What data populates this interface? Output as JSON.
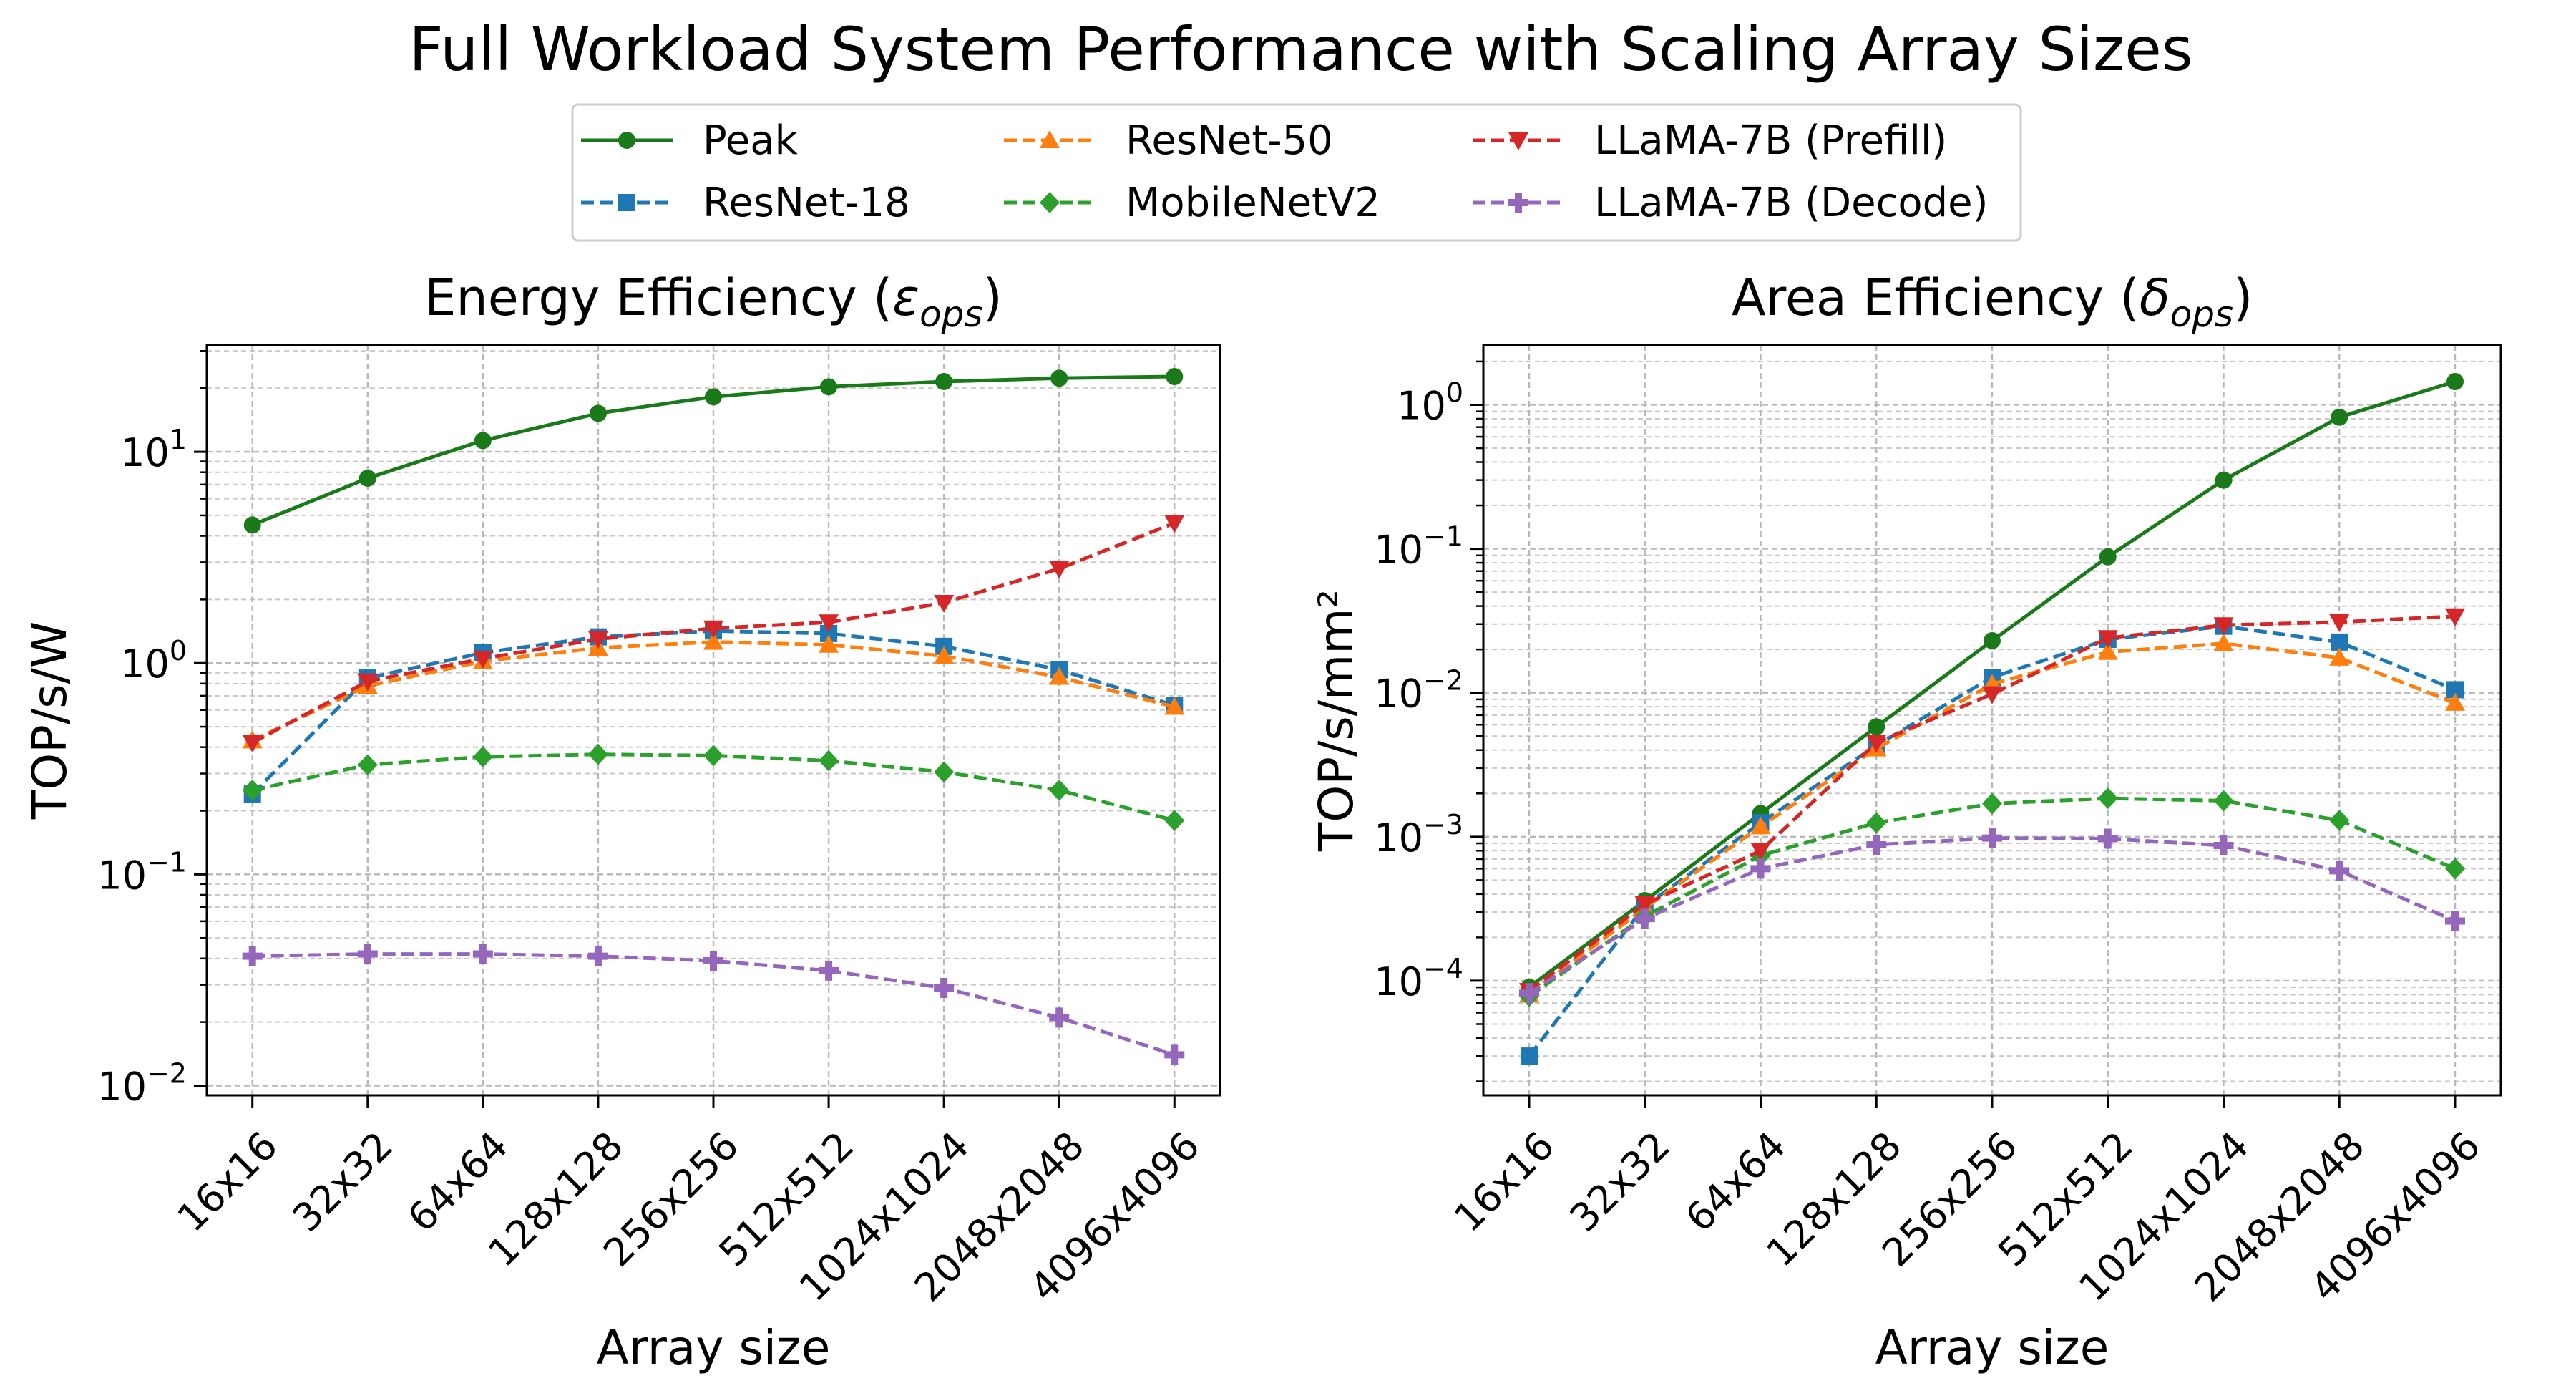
{
  "figure": {
    "title": "Full Workload System Performance with Scaling Array Sizes"
  },
  "legend": {
    "placement": "top-center, 3 columns",
    "entries": [
      {
        "series": "Peak",
        "label": "Peak",
        "color": "#1a7a1a",
        "marker": "circle",
        "dash": "solid"
      },
      {
        "series": "ResNet-18",
        "label": "ResNet-18",
        "color": "#1f77b4",
        "marker": "square",
        "dash": "dashed"
      },
      {
        "series": "ResNet-50",
        "label": "ResNet-50",
        "color": "#ff7f0e",
        "marker": "triangle-up",
        "dash": "dashed"
      },
      {
        "series": "MobileNetV2",
        "label": "MobileNetV2",
        "color": "#2ca02c",
        "marker": "diamond",
        "dash": "dashed"
      },
      {
        "series": "LLaMA-7B (Prefill)",
        "label": "LLaMA-7B (Prefill)",
        "color": "#d62728",
        "marker": "triangle-down",
        "dash": "dashed"
      },
      {
        "series": "LLaMA-7B (Decode)",
        "label": "LLaMA-7B (Decode)",
        "color": "#9467bd",
        "marker": "plus",
        "dash": "dashed"
      }
    ]
  },
  "chart_data": [
    {
      "type": "line",
      "title_text": "Energy Efficiency (",
      "title_symbol": "ε",
      "title_sub": "ops",
      "title_close": ")",
      "xlabel": "Array size",
      "ylabel": "TOP/s/W",
      "yscale": "log",
      "ylim": [
        0.009,
        32
      ],
      "yticks": [
        {
          "value": 0.01,
          "base": "10",
          "exp": "−2"
        },
        {
          "value": 0.1,
          "base": "10",
          "exp": "−1"
        },
        {
          "value": 1,
          "base": "10",
          "exp": "0"
        },
        {
          "value": 10,
          "base": "10",
          "exp": "1"
        }
      ],
      "grid": true,
      "categories": [
        "16x16",
        "32x32",
        "64x64",
        "128x128",
        "256x256",
        "512x512",
        "1024x1024",
        "2048x2048",
        "4096x4096"
      ],
      "series": [
        {
          "name": "Peak",
          "values": [
            4.5,
            7.5,
            11.3,
            15.2,
            18.2,
            20.3,
            21.5,
            22.3,
            22.7
          ]
        },
        {
          "name": "ResNet-18",
          "values": [
            0.24,
            0.85,
            1.12,
            1.33,
            1.42,
            1.38,
            1.2,
            0.93,
            0.63
          ]
        },
        {
          "name": "ResNet-50",
          "values": [
            0.43,
            0.78,
            1.02,
            1.18,
            1.26,
            1.22,
            1.08,
            0.86,
            0.62
          ]
        },
        {
          "name": "MobileNetV2",
          "values": [
            0.25,
            0.33,
            0.36,
            0.37,
            0.365,
            0.345,
            0.305,
            0.25,
            0.18
          ]
        },
        {
          "name": "LLaMA-7B (Prefill)",
          "values": [
            0.42,
            0.82,
            1.05,
            1.3,
            1.46,
            1.56,
            1.93,
            2.8,
            4.6
          ]
        },
        {
          "name": "LLaMA-7B (Decode)",
          "values": [
            0.041,
            0.042,
            0.042,
            0.041,
            0.039,
            0.035,
            0.029,
            0.021,
            0.014
          ]
        }
      ]
    },
    {
      "type": "line",
      "title_text": "Area Efficiency (",
      "title_symbol": "δ",
      "title_sub": "ops",
      "title_close": ")",
      "xlabel": "Array size",
      "ylabel": "TOP/s/mm²",
      "yscale": "log",
      "ylim": [
        1.6e-05,
        2.6
      ],
      "yticks": [
        {
          "value": 0.0001,
          "base": "10",
          "exp": "−4"
        },
        {
          "value": 0.001,
          "base": "10",
          "exp": "−3"
        },
        {
          "value": 0.01,
          "base": "10",
          "exp": "−2"
        },
        {
          "value": 0.1,
          "base": "10",
          "exp": "−1"
        },
        {
          "value": 1,
          "base": "10",
          "exp": "0"
        }
      ],
      "grid": true,
      "categories": [
        "16x16",
        "32x32",
        "64x64",
        "128x128",
        "256x256",
        "512x512",
        "1024x1024",
        "2048x2048",
        "4096x4096"
      ],
      "series": [
        {
          "name": "Peak",
          "values": [
            9e-05,
            0.00036,
            0.00145,
            0.0058,
            0.023,
            0.088,
            0.3,
            0.82,
            1.45
          ]
        },
        {
          "name": "ResNet-18",
          "values": [
            3e-05,
            0.00033,
            0.00125,
            0.0043,
            0.0128,
            0.0235,
            0.029,
            0.0225,
            0.0105
          ]
        },
        {
          "name": "ResNet-50",
          "values": [
            8e-05,
            0.00032,
            0.00118,
            0.0041,
            0.0115,
            0.0192,
            0.022,
            0.0175,
            0.0085
          ]
        },
        {
          "name": "MobileNetV2",
          "values": [
            7.8e-05,
            0.00028,
            0.00074,
            0.00125,
            0.0017,
            0.00185,
            0.00178,
            0.0013,
            0.0006
          ]
        },
        {
          "name": "LLaMA-7B (Prefill)",
          "values": [
            8.5e-05,
            0.00034,
            0.0008,
            0.0045,
            0.0098,
            0.024,
            0.0295,
            0.031,
            0.034
          ]
        },
        {
          "name": "LLaMA-7B (Decode)",
          "values": [
            8.2e-05,
            0.00027,
            0.0006,
            0.00088,
            0.00098,
            0.00097,
            0.00087,
            0.00058,
            0.00026
          ]
        }
      ]
    }
  ]
}
